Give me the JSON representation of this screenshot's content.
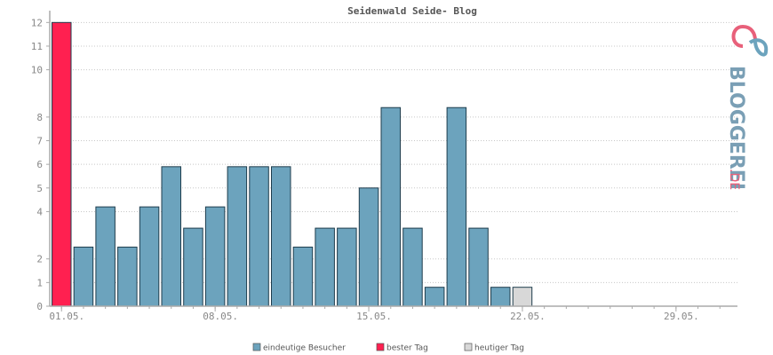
{
  "chart_data": {
    "type": "bar",
    "title": "Seidenwald Seide- Blog",
    "xlabel": "",
    "ylabel": "",
    "ylim": [
      0,
      12.5
    ],
    "yticks": [
      0,
      1,
      2,
      4,
      5,
      6,
      7,
      8,
      10,
      11,
      12
    ],
    "xtick_labels": [
      "01.05.",
      "08.05.",
      "15.05.",
      "22.05.",
      "29.05."
    ],
    "xtick_days": [
      1,
      8,
      15,
      22,
      29
    ],
    "days_in_month": 31,
    "series": [
      {
        "name": "eindeutige Besucher",
        "color": "#6ca3bd",
        "days": [
          2,
          3,
          4,
          5,
          6,
          7,
          8,
          9,
          10,
          11,
          12,
          13,
          14,
          15,
          16,
          17,
          18,
          19,
          20,
          21
        ],
        "values": [
          2.5,
          4.2,
          2.5,
          4.2,
          5.9,
          3.3,
          4.2,
          5.9,
          5.9,
          5.9,
          2.5,
          3.3,
          3.3,
          5.0,
          8.4,
          3.3,
          0.8,
          8.4,
          3.3,
          0.8
        ]
      },
      {
        "name": "bester Tag",
        "color": "#ff2050",
        "days": [
          1
        ],
        "values": [
          12
        ]
      },
      {
        "name": "heutiger Tag",
        "color": "#d8d8d8",
        "days": [
          22
        ],
        "values": [
          0.8
        ]
      }
    ],
    "legend_position": "bottom-center",
    "grid": true
  },
  "watermark": {
    "text": "BLOGGEREI",
    "suffix": ".DE"
  }
}
